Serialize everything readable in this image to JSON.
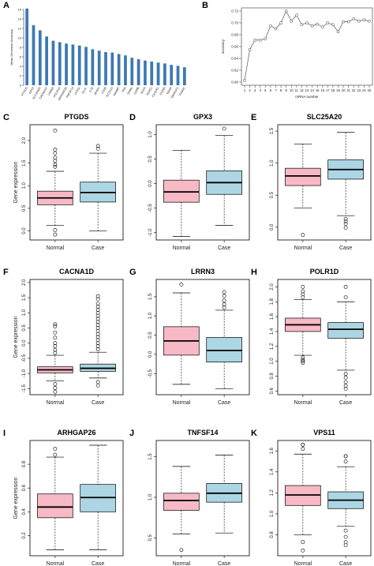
{
  "colors": {
    "bar": "#3d78b5",
    "normal_box": "#f8b9c6",
    "case_box": "#acd6e4",
    "line": "#555555"
  },
  "chart_data": [
    {
      "panel": "A",
      "type": "bar",
      "ylabel": "Mean Decrease Accuracy",
      "ylim": [
        0,
        16
      ],
      "yticks": [
        0,
        2,
        4,
        6,
        8,
        10,
        12,
        14,
        16
      ],
      "categories": [
        "PTGDS",
        "GPX3",
        "SLC25A20",
        "CACNA1D",
        "LRRN3",
        "POLR1D",
        "ARHGAP26",
        "TNFSF14",
        "VPS11",
        "GLUL",
        "IL32",
        "AFAP1",
        "CD59",
        "KCTD10",
        "RANBP",
        "TRH",
        "DNM1",
        "GZMB",
        "SOX5",
        "SOAT1",
        "CX3CR1",
        "CD160",
        "TIRAP",
        "TNFRSF1",
        "TXNDC"
      ],
      "values": [
        16.2,
        12.7,
        11.6,
        10.3,
        9.4,
        9.1,
        8.8,
        8.6,
        8.4,
        8.1,
        7.6,
        7.3,
        7.0,
        6.9,
        6.6,
        6.3,
        5.8,
        5.5,
        5.2,
        5.0,
        4.8,
        4.6,
        4.3,
        4.1,
        3.8
      ]
    },
    {
      "panel": "B",
      "type": "line",
      "xlabel": "mRNA number",
      "ylabel": "accuracy",
      "xlim": [
        1,
        25
      ],
      "ylim": [
        0.6,
        0.72
      ],
      "yticks": [
        0.6,
        0.62,
        0.64,
        0.66,
        0.68,
        0.7,
        0.72
      ],
      "x": [
        1,
        2,
        3,
        4,
        5,
        6,
        7,
        8,
        9,
        10,
        11,
        12,
        13,
        14,
        15,
        16,
        17,
        18,
        19,
        20,
        21,
        22,
        23,
        24,
        25
      ],
      "values": [
        0.603,
        0.655,
        0.671,
        0.671,
        0.673,
        0.695,
        0.69,
        0.7,
        0.72,
        0.703,
        0.713,
        0.697,
        0.7,
        0.695,
        0.698,
        0.693,
        0.7,
        0.697,
        0.685,
        0.702,
        0.702,
        0.707,
        0.703,
        0.705,
        0.703
      ]
    },
    {
      "panel": "C",
      "type": "box",
      "title": "PTGDS",
      "ylabel": "Gene expression",
      "ylim": [
        -0.2,
        2.35
      ],
      "yticks": [
        0.0,
        0.5,
        1.0,
        1.5,
        2.0
      ],
      "categories": [
        "Normal",
        "Case"
      ],
      "boxes": [
        {
          "name": "Normal",
          "whislo": 0.12,
          "q1": 0.58,
          "med": 0.73,
          "q3": 0.88,
          "whishi": 1.32,
          "fliers": [
            1.42,
            1.47,
            1.55,
            1.62,
            1.72,
            1.8,
            2.22,
            0.02,
            -0.08
          ]
        },
        {
          "name": "Case",
          "whislo": 0.0,
          "q1": 0.64,
          "med": 0.85,
          "q3": 1.08,
          "whishi": 1.72,
          "fliers": [
            1.82,
            1.88
          ]
        }
      ]
    },
    {
      "panel": "D",
      "type": "box",
      "title": "GPX3",
      "ylabel": "",
      "ylim": [
        -1.15,
        1.2
      ],
      "yticks": [
        -1.0,
        -0.5,
        0.0,
        0.5,
        1.0
      ],
      "categories": [
        "Normal",
        "Case"
      ],
      "boxes": [
        {
          "name": "Normal",
          "whislo": -1.08,
          "q1": -0.38,
          "med": -0.17,
          "q3": 0.07,
          "whishi": 0.68,
          "fliers": []
        },
        {
          "name": "Case",
          "whislo": -0.85,
          "q1": -0.22,
          "med": 0.02,
          "q3": 0.26,
          "whishi": 0.98,
          "fliers": [
            1.12
          ]
        }
      ]
    },
    {
      "panel": "E",
      "type": "box",
      "title": "SLC25A20",
      "ylabel": "",
      "ylim": [
        -0.2,
        1.6
      ],
      "yticks": [
        0.0,
        0.5,
        1.0,
        1.5
      ],
      "categories": [
        "Normal",
        "Case"
      ],
      "boxes": [
        {
          "name": "Normal",
          "whislo": 0.3,
          "q1": 0.65,
          "med": 0.8,
          "q3": 0.92,
          "whishi": 1.3,
          "fliers": [
            -0.12
          ]
        },
        {
          "name": "Case",
          "whislo": 0.18,
          "q1": 0.75,
          "med": 0.9,
          "q3": 1.05,
          "whishi": 1.48,
          "fliers": [
            0.13,
            0.09,
            0.05,
            -0.01
          ]
        }
      ]
    },
    {
      "panel": "F",
      "type": "box",
      "title": "CACNA1D",
      "ylabel": "Gene expression",
      "ylim": [
        -1.7,
        2.1
      ],
      "yticks": [
        -1.5,
        -1.0,
        -0.5,
        0.0,
        0.5,
        1.0,
        1.5,
        2.0
      ],
      "categories": [
        "Normal",
        "Case"
      ],
      "boxes": [
        {
          "name": "Normal",
          "whislo": -1.25,
          "q1": -0.98,
          "med": -0.88,
          "q3": -0.78,
          "whishi": -0.4,
          "fliers": [
            -0.32,
            -0.22,
            -0.1,
            0.0,
            0.18,
            0.35,
            0.55,
            0.62,
            -1.35,
            -1.48,
            -1.6
          ]
        },
        {
          "name": "Case",
          "whislo": -1.15,
          "q1": -0.93,
          "med": -0.83,
          "q3": -0.69,
          "whishi": -0.3,
          "fliers": [
            -0.2,
            -0.1,
            0.0,
            0.1,
            0.2,
            0.3,
            0.4,
            0.5,
            0.6,
            0.7,
            0.8,
            0.9,
            1.0,
            1.1,
            1.2,
            1.3,
            1.45,
            1.55,
            -1.28,
            -1.4
          ]
        }
      ]
    },
    {
      "panel": "G",
      "type": "box",
      "title": "LRRN3",
      "ylabel": "",
      "ylim": [
        -1.05,
        1.95
      ],
      "yticks": [
        -0.5,
        0.0,
        0.5,
        1.0,
        1.5
      ],
      "categories": [
        "Normal",
        "Case"
      ],
      "boxes": [
        {
          "name": "Normal",
          "whislo": -0.78,
          "q1": -0.02,
          "med": 0.35,
          "q3": 0.72,
          "whishi": 1.6,
          "fliers": [
            1.82
          ]
        },
        {
          "name": "Case",
          "whislo": -0.9,
          "q1": -0.2,
          "med": 0.1,
          "q3": 0.44,
          "whishi": 1.15,
          "fliers": [
            1.22,
            1.3,
            1.4,
            1.52,
            1.62
          ]
        }
      ]
    },
    {
      "panel": "H",
      "type": "box",
      "title": "POLR1D",
      "ylabel": "",
      "ylim": [
        0.55,
        2.1
      ],
      "yticks": [
        0.6,
        0.8,
        1.0,
        1.2,
        1.4,
        1.6,
        1.8,
        2.0
      ],
      "categories": [
        "Normal",
        "Case"
      ],
      "boxes": [
        {
          "name": "Normal",
          "whislo": 1.08,
          "q1": 1.4,
          "med": 1.49,
          "q3": 1.58,
          "whishi": 1.83,
          "fliers": [
            1.86,
            1.9,
            1.94,
            2.0,
            1.05,
            1.02,
            1.0,
            0.98
          ]
        },
        {
          "name": "Case",
          "whislo": 0.88,
          "q1": 1.31,
          "med": 1.43,
          "q3": 1.52,
          "whishi": 1.8,
          "fliers": [
            1.86,
            2.0,
            0.83,
            0.78,
            0.72,
            0.67,
            0.63
          ]
        }
      ]
    },
    {
      "panel": "I",
      "type": "box",
      "title": "ARHGAP26",
      "ylabel": "Gene expression",
      "ylim": [
        0.03,
        1.0
      ],
      "yticks": [
        0.2,
        0.4,
        0.6,
        0.8
      ],
      "categories": [
        "Normal",
        "Case"
      ],
      "boxes": [
        {
          "name": "Normal",
          "whislo": 0.08,
          "q1": 0.35,
          "med": 0.44,
          "q3": 0.55,
          "whishi": 0.86,
          "fliers": [
            0.88,
            0.93
          ]
        },
        {
          "name": "Case",
          "whislo": 0.08,
          "q1": 0.4,
          "med": 0.52,
          "q3": 0.63,
          "whishi": 0.96,
          "fliers": []
        }
      ]
    },
    {
      "panel": "J",
      "type": "box",
      "title": "TNFSF14",
      "ylabel": "",
      "ylim": [
        0.28,
        1.7
      ],
      "yticks": [
        0.5,
        1.0,
        1.5
      ],
      "categories": [
        "Normal",
        "Case"
      ],
      "boxes": [
        {
          "name": "Normal",
          "whislo": 0.55,
          "q1": 0.84,
          "med": 0.96,
          "q3": 1.05,
          "whishi": 1.38,
          "fliers": [
            0.35
          ]
        },
        {
          "name": "Case",
          "whislo": 0.56,
          "q1": 0.94,
          "med": 1.05,
          "q3": 1.17,
          "whishi": 1.52,
          "fliers": []
        }
      ]
    },
    {
      "panel": "K",
      "type": "box",
      "title": "VPS11",
      "ylabel": "",
      "ylim": [
        0.6,
        1.7
      ],
      "yticks": [
        0.8,
        1.0,
        1.2,
        1.4,
        1.6
      ],
      "categories": [
        "Normal",
        "Case"
      ],
      "boxes": [
        {
          "name": "Normal",
          "whislo": 0.8,
          "q1": 1.08,
          "med": 1.18,
          "q3": 1.27,
          "whishi": 1.57,
          "fliers": [
            1.62,
            1.66,
            1.66,
            0.73,
            0.65
          ]
        },
        {
          "name": "Case",
          "whislo": 0.88,
          "q1": 1.05,
          "med": 1.13,
          "q3": 1.21,
          "whishi": 1.45,
          "fliers": [
            1.5,
            1.55,
            1.55,
            0.84,
            0.78,
            0.73,
            0.7
          ]
        }
      ]
    }
  ]
}
